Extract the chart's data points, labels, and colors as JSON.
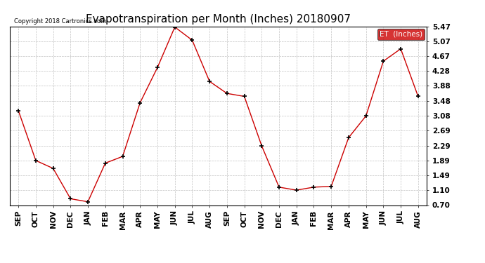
{
  "title": "Evapotranspiration per Month (Inches) 20180907",
  "copyright_text": "Copyright 2018 Cartronics.com",
  "legend_label": "ET  (Inches)",
  "legend_bg": "#cc0000",
  "legend_fg": "#ffffff",
  "x_labels": [
    "SEP",
    "OCT",
    "NOV",
    "DEC",
    "JAN",
    "FEB",
    "MAR",
    "APR",
    "MAY",
    "JUN",
    "JUL",
    "AUG",
    "SEP",
    "OCT",
    "NOV",
    "DEC",
    "JAN",
    "FEB",
    "MAR",
    "APR",
    "MAY",
    "JUN",
    "JUL",
    "AUG"
  ],
  "y_values": [
    3.22,
    1.89,
    1.68,
    0.87,
    0.79,
    1.82,
    2.0,
    3.43,
    4.37,
    5.45,
    5.1,
    4.0,
    3.68,
    3.6,
    2.28,
    1.18,
    1.1,
    1.18,
    1.2,
    2.5,
    3.08,
    4.54,
    4.87,
    3.6
  ],
  "y_ticks": [
    0.7,
    1.1,
    1.49,
    1.89,
    2.29,
    2.69,
    3.08,
    3.48,
    3.88,
    4.28,
    4.67,
    5.07,
    5.47
  ],
  "ylim": [
    0.7,
    5.47
  ],
  "line_color": "#cc0000",
  "marker_color": "#000000",
  "bg_color": "#ffffff",
  "grid_color": "#bbbbbb",
  "title_fontsize": 11,
  "label_fontsize": 7.5
}
